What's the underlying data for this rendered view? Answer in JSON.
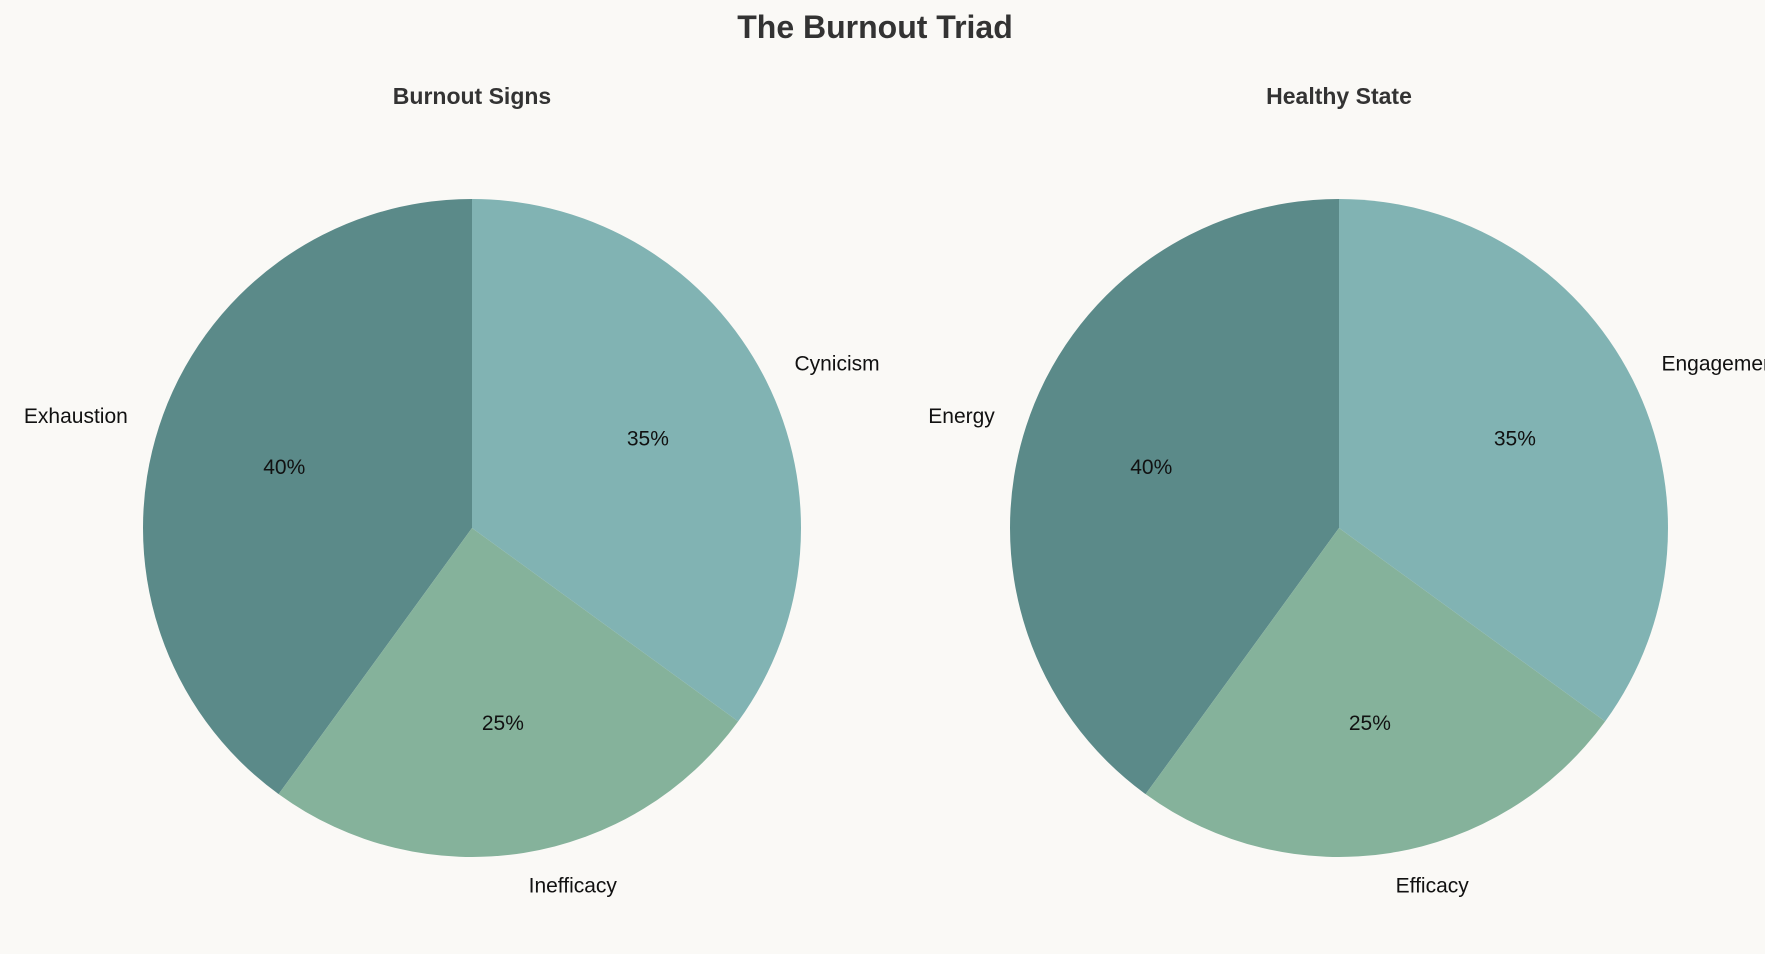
{
  "title": "The Burnout Triad",
  "colors": [
    "#5b8a89",
    "#85b29b",
    "#81b3b3"
  ],
  "chart_data": [
    {
      "type": "pie",
      "title": "Burnout Signs",
      "categories": [
        "Exhaustion",
        "Inefficacy",
        "Cynicism"
      ],
      "values": [
        40,
        25,
        35
      ],
      "value_labels": [
        "40%",
        "25%",
        "35%"
      ],
      "start_angle_deg": 90,
      "direction": "counterclockwise"
    },
    {
      "type": "pie",
      "title": "Healthy State",
      "categories": [
        "Energy",
        "Efficacy",
        "Engagement"
      ],
      "values": [
        40,
        25,
        35
      ],
      "value_labels": [
        "40%",
        "25%",
        "35%"
      ],
      "start_angle_deg": 90,
      "direction": "counterclockwise"
    }
  ]
}
